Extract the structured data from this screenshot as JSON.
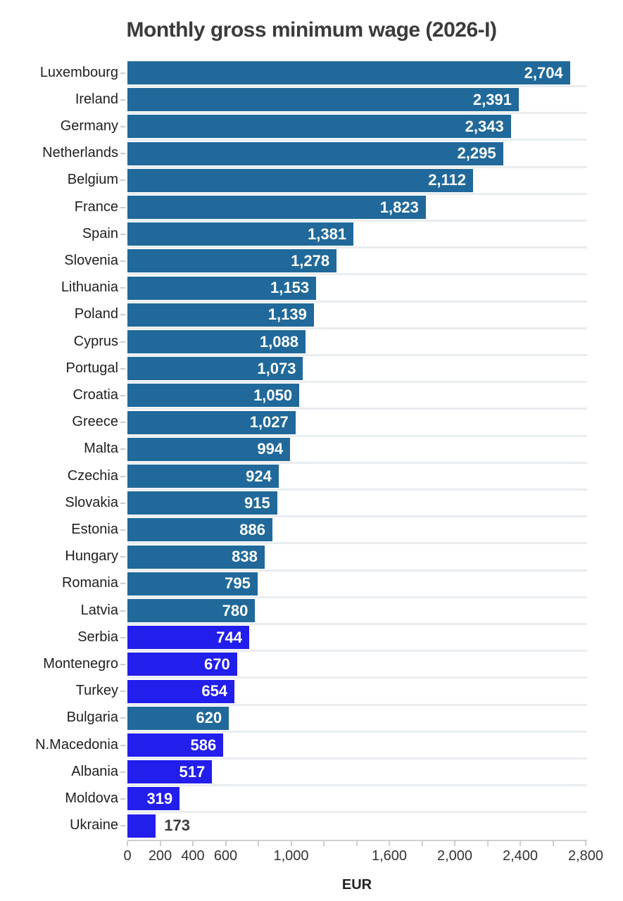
{
  "chart_data": {
    "type": "bar",
    "orientation": "horizontal",
    "title": "Monthly gross minimum wage (2026-I)",
    "xlabel": "EUR",
    "xlim": [
      0,
      2800
    ],
    "x_tick_step": 200,
    "x_axis_labels": [
      {
        "value": 0,
        "label": "0"
      },
      {
        "value": 200,
        "label": "200"
      },
      {
        "value": 400,
        "label": "400"
      },
      {
        "value": 600,
        "label": "600"
      },
      {
        "value": 1000,
        "label": "1,000"
      },
      {
        "value": 1600,
        "label": "1,600"
      },
      {
        "value": 2000,
        "label": "2,000"
      },
      {
        "value": 2400,
        "label": "2,400"
      },
      {
        "value": 2800,
        "label": "2,800"
      }
    ],
    "grid": "horizontal",
    "legend": "none",
    "colors": {
      "eu_bar": "#20699a",
      "non_eu_bar": "#221eeb",
      "value_label_inside": "#ffffff",
      "value_label_outside": "#3d3d3d"
    },
    "bars": [
      {
        "country": "Luxembourg",
        "value": 2704,
        "label": "2,704",
        "group": "eu"
      },
      {
        "country": "Ireland",
        "value": 2391,
        "label": "2,391",
        "group": "eu"
      },
      {
        "country": "Germany",
        "value": 2343,
        "label": "2,343",
        "group": "eu"
      },
      {
        "country": "Netherlands",
        "value": 2295,
        "label": "2,295",
        "group": "eu"
      },
      {
        "country": "Belgium",
        "value": 2112,
        "label": "2,112",
        "group": "eu"
      },
      {
        "country": "France",
        "value": 1823,
        "label": "1,823",
        "group": "eu"
      },
      {
        "country": "Spain",
        "value": 1381,
        "label": "1,381",
        "group": "eu"
      },
      {
        "country": "Slovenia",
        "value": 1278,
        "label": "1,278",
        "group": "eu"
      },
      {
        "country": "Lithuania",
        "value": 1153,
        "label": "1,153",
        "group": "eu"
      },
      {
        "country": "Poland",
        "value": 1139,
        "label": "1,139",
        "group": "eu"
      },
      {
        "country": "Cyprus",
        "value": 1088,
        "label": "1,088",
        "group": "eu"
      },
      {
        "country": "Portugal",
        "value": 1073,
        "label": "1,073",
        "group": "eu"
      },
      {
        "country": "Croatia",
        "value": 1050,
        "label": "1,050",
        "group": "eu"
      },
      {
        "country": "Greece",
        "value": 1027,
        "label": "1,027",
        "group": "eu"
      },
      {
        "country": "Malta",
        "value": 994,
        "label": "994",
        "group": "eu"
      },
      {
        "country": "Czechia",
        "value": 924,
        "label": "924",
        "group": "eu"
      },
      {
        "country": "Slovakia",
        "value": 915,
        "label": "915",
        "group": "eu"
      },
      {
        "country": "Estonia",
        "value": 886,
        "label": "886",
        "group": "eu"
      },
      {
        "country": "Hungary",
        "value": 838,
        "label": "838",
        "group": "eu"
      },
      {
        "country": "Romania",
        "value": 795,
        "label": "795",
        "group": "eu"
      },
      {
        "country": "Latvia",
        "value": 780,
        "label": "780",
        "group": "eu"
      },
      {
        "country": "Serbia",
        "value": 744,
        "label": "744",
        "group": "non_eu"
      },
      {
        "country": "Montenegro",
        "value": 670,
        "label": "670",
        "group": "non_eu"
      },
      {
        "country": "Turkey",
        "value": 654,
        "label": "654",
        "group": "non_eu"
      },
      {
        "country": "Bulgaria",
        "value": 620,
        "label": "620",
        "group": "eu"
      },
      {
        "country": "N.Macedonia",
        "value": 586,
        "label": "586",
        "group": "non_eu"
      },
      {
        "country": "Albania",
        "value": 517,
        "label": "517",
        "group": "non_eu"
      },
      {
        "country": "Moldova",
        "value": 319,
        "label": "319",
        "group": "non_eu"
      },
      {
        "country": "Ukraine",
        "value": 173,
        "label": "173",
        "group": "non_eu"
      }
    ]
  }
}
